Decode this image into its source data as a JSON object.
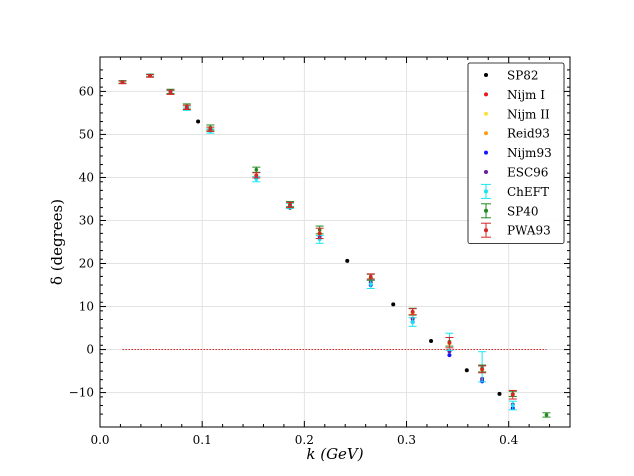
{
  "chart_data": {
    "type": "scatter",
    "title": "",
    "xlabel": "k (GeV)",
    "ylabel": "δ (degrees)",
    "xlim": [
      0.0,
      0.46
    ],
    "ylim": [
      -18,
      68
    ],
    "xticks": [
      "0.0",
      "0.1",
      "0.2",
      "0.3",
      "0.4"
    ],
    "yticks": [
      "−10",
      "0",
      "10",
      "20",
      "30",
      "40",
      "50",
      "60"
    ],
    "grid": true,
    "legend_position": "top-right",
    "zero_line": {
      "y": 0,
      "x_range": [
        0.022,
        0.437
      ],
      "color": "#d62728",
      "style": "dotted"
    },
    "series": [
      {
        "name": "SP82",
        "color": "#000000",
        "marker": "dot",
        "points": [
          [
            0.096,
            53.0
          ],
          [
            0.186,
            33.0
          ],
          [
            0.242,
            20.6
          ],
          [
            0.287,
            10.5
          ],
          [
            0.324,
            2.0
          ],
          [
            0.359,
            -4.8
          ],
          [
            0.391,
            -10.3
          ]
        ]
      },
      {
        "name": "Nijm I",
        "color": "#e8161c",
        "marker": "dot",
        "points": [
          [
            0.022,
            62.2
          ],
          [
            0.049,
            63.7
          ],
          [
            0.069,
            60.0
          ],
          [
            0.085,
            56.2
          ],
          [
            0.108,
            51.3
          ],
          [
            0.153,
            40.4
          ],
          [
            0.186,
            33.6
          ],
          [
            0.215,
            27.0
          ],
          [
            0.265,
            16.6
          ],
          [
            0.306,
            8.6
          ],
          [
            0.342,
            1.5
          ],
          [
            0.374,
            -4.6
          ],
          [
            0.404,
            -10.4
          ]
        ]
      },
      {
        "name": "Nijm II",
        "color": "#ffe135",
        "marker": "dot",
        "points": [
          [
            0.022,
            62.2
          ],
          [
            0.049,
            63.7
          ],
          [
            0.069,
            60.0
          ],
          [
            0.085,
            56.2
          ],
          [
            0.108,
            51.3
          ],
          [
            0.153,
            40.4
          ],
          [
            0.186,
            33.6
          ],
          [
            0.215,
            27.0
          ],
          [
            0.265,
            16.6
          ],
          [
            0.306,
            8.6
          ],
          [
            0.342,
            1.5
          ],
          [
            0.374,
            -4.6
          ],
          [
            0.404,
            -10.4
          ]
        ]
      },
      {
        "name": "Reid93",
        "color": "#ff9f0f",
        "marker": "dot",
        "points": [
          [
            0.022,
            62.2
          ],
          [
            0.049,
            63.7
          ],
          [
            0.069,
            60.0
          ],
          [
            0.085,
            56.2
          ],
          [
            0.108,
            51.3
          ],
          [
            0.153,
            40.4
          ],
          [
            0.186,
            33.6
          ],
          [
            0.215,
            27.0
          ],
          [
            0.265,
            16.6
          ],
          [
            0.306,
            8.6
          ],
          [
            0.342,
            1.5
          ],
          [
            0.374,
            -4.6
          ],
          [
            0.404,
            -10.4
          ]
        ]
      },
      {
        "name": "Nijm93",
        "color": "#1515ff",
        "marker": "dot",
        "points": [
          [
            0.022,
            62.2
          ],
          [
            0.049,
            63.7
          ],
          [
            0.069,
            60.0
          ],
          [
            0.085,
            56.0
          ],
          [
            0.108,
            50.9
          ],
          [
            0.153,
            39.8
          ],
          [
            0.186,
            33.4
          ],
          [
            0.215,
            25.8
          ],
          [
            0.265,
            15.0
          ],
          [
            0.306,
            6.4
          ],
          [
            0.342,
            -1.3
          ],
          [
            0.374,
            -7.4
          ],
          [
            0.404,
            -13.6
          ]
        ]
      },
      {
        "name": "ESC96",
        "color": "#6a1b9a",
        "marker": "dot",
        "points": [
          [
            0.022,
            62.2
          ],
          [
            0.049,
            63.7
          ],
          [
            0.069,
            60.0
          ],
          [
            0.085,
            56.0
          ],
          [
            0.108,
            51.0
          ],
          [
            0.153,
            40.0
          ],
          [
            0.186,
            33.5
          ],
          [
            0.215,
            26.4
          ],
          [
            0.265,
            15.6
          ],
          [
            0.306,
            7.2
          ],
          [
            0.342,
            -0.4
          ],
          [
            0.374,
            -6.8
          ],
          [
            0.404,
            -12.8
          ]
        ]
      },
      {
        "name": "ChEFT",
        "color": "#17e6f0",
        "marker": "errorbar",
        "points": [
          [
            0.022,
            62.2,
            0.3
          ],
          [
            0.049,
            63.7,
            0.3
          ],
          [
            0.069,
            59.8,
            0.4
          ],
          [
            0.085,
            56.0,
            0.4
          ],
          [
            0.108,
            50.8,
            0.5
          ],
          [
            0.153,
            39.6,
            0.6
          ],
          [
            0.186,
            33.4,
            0.6
          ],
          [
            0.215,
            25.6,
            0.9
          ],
          [
            0.265,
            15.2,
            1.0
          ],
          [
            0.306,
            6.4,
            1.0
          ],
          [
            0.342,
            1.8,
            2.0
          ],
          [
            0.374,
            -4.0,
            3.5
          ],
          [
            0.404,
            -13.0,
            1.0
          ]
        ]
      },
      {
        "name": "SP40",
        "color": "#1f8a1f",
        "marker": "errorbar",
        "points": [
          [
            0.022,
            62.2,
            0.3
          ],
          [
            0.049,
            63.7,
            0.3
          ],
          [
            0.069,
            60.0,
            0.5
          ],
          [
            0.085,
            56.5,
            0.6
          ],
          [
            0.108,
            51.6,
            0.6
          ],
          [
            0.153,
            41.8,
            0.6
          ],
          [
            0.186,
            33.8,
            0.6
          ],
          [
            0.215,
            27.8,
            0.9
          ],
          [
            0.265,
            16.8,
            0.7
          ],
          [
            0.306,
            8.8,
            0.8
          ],
          [
            0.342,
            1.8,
            1.0
          ],
          [
            0.374,
            -4.4,
            0.8
          ],
          [
            0.404,
            -10.3,
            0.6
          ],
          [
            0.437,
            -15.2,
            0.5
          ]
        ]
      },
      {
        "name": "PWA93",
        "color": "#d62728",
        "marker": "errorbar",
        "points": [
          [
            0.022,
            62.1,
            0.3
          ],
          [
            0.049,
            63.6,
            0.3
          ],
          [
            0.069,
            59.8,
            0.5
          ],
          [
            0.085,
            56.3,
            0.5
          ],
          [
            0.108,
            51.2,
            0.5
          ],
          [
            0.153,
            40.5,
            0.6
          ],
          [
            0.186,
            33.6,
            0.6
          ],
          [
            0.215,
            27.0,
            1.2
          ],
          [
            0.265,
            17.0,
            0.6
          ],
          [
            0.306,
            8.8,
            0.7
          ],
          [
            0.342,
            1.6,
            1.2
          ],
          [
            0.374,
            -4.6,
            0.8
          ],
          [
            0.404,
            -10.5,
            1.0
          ]
        ]
      }
    ]
  }
}
